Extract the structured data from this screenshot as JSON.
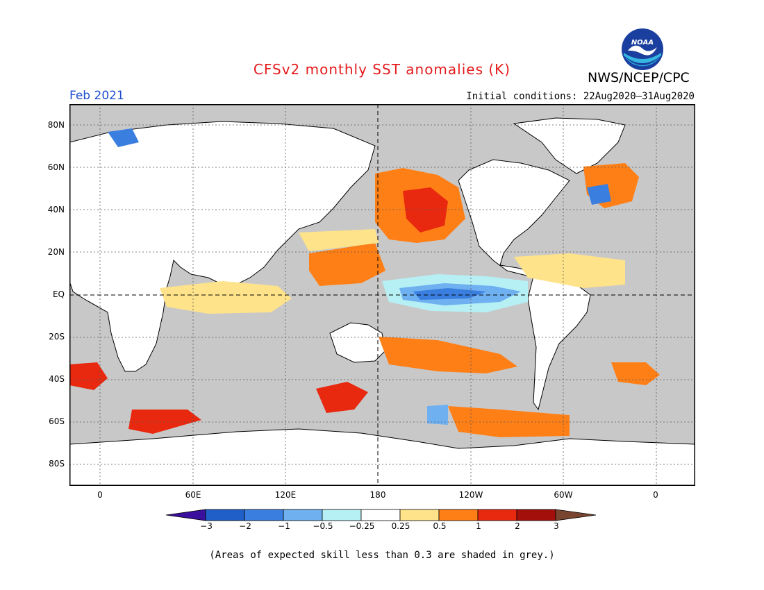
{
  "header": {
    "title": "CFSv2 monthly SST anomalies (K)",
    "agency": "NWS/NCEP/CPC",
    "logo_text": "NOAA",
    "period": "Feb 2021",
    "initial_conditions": "Initial conditions: 22Aug2020–31Aug2020"
  },
  "map": {
    "lat_labels": [
      "80N",
      "60N",
      "40N",
      "20N",
      "EQ",
      "20S",
      "40S",
      "60S",
      "80S"
    ],
    "lon_labels": [
      "0",
      "60E",
      "120E",
      "180",
      "120W",
      "60W",
      "0"
    ],
    "background_color": "#c8c8c8",
    "land_color": "#ffffff"
  },
  "colorbar": {
    "labels": [
      "−3",
      "−2",
      "−1",
      "−0.5",
      "−0.25",
      "0.25",
      "0.5",
      "1",
      "2",
      "3"
    ],
    "colors": [
      "#3a0f9e",
      "#1f5fc7",
      "#3a7fe0",
      "#6fb0f0",
      "#b6f0f5",
      "#ffffff",
      "#ffe38a",
      "#ff7f17",
      "#e8290f",
      "#a30f0a",
      "#7a4530"
    ]
  },
  "note": "(Areas of expected skill less than 0.3 are shaded in grey.)"
}
